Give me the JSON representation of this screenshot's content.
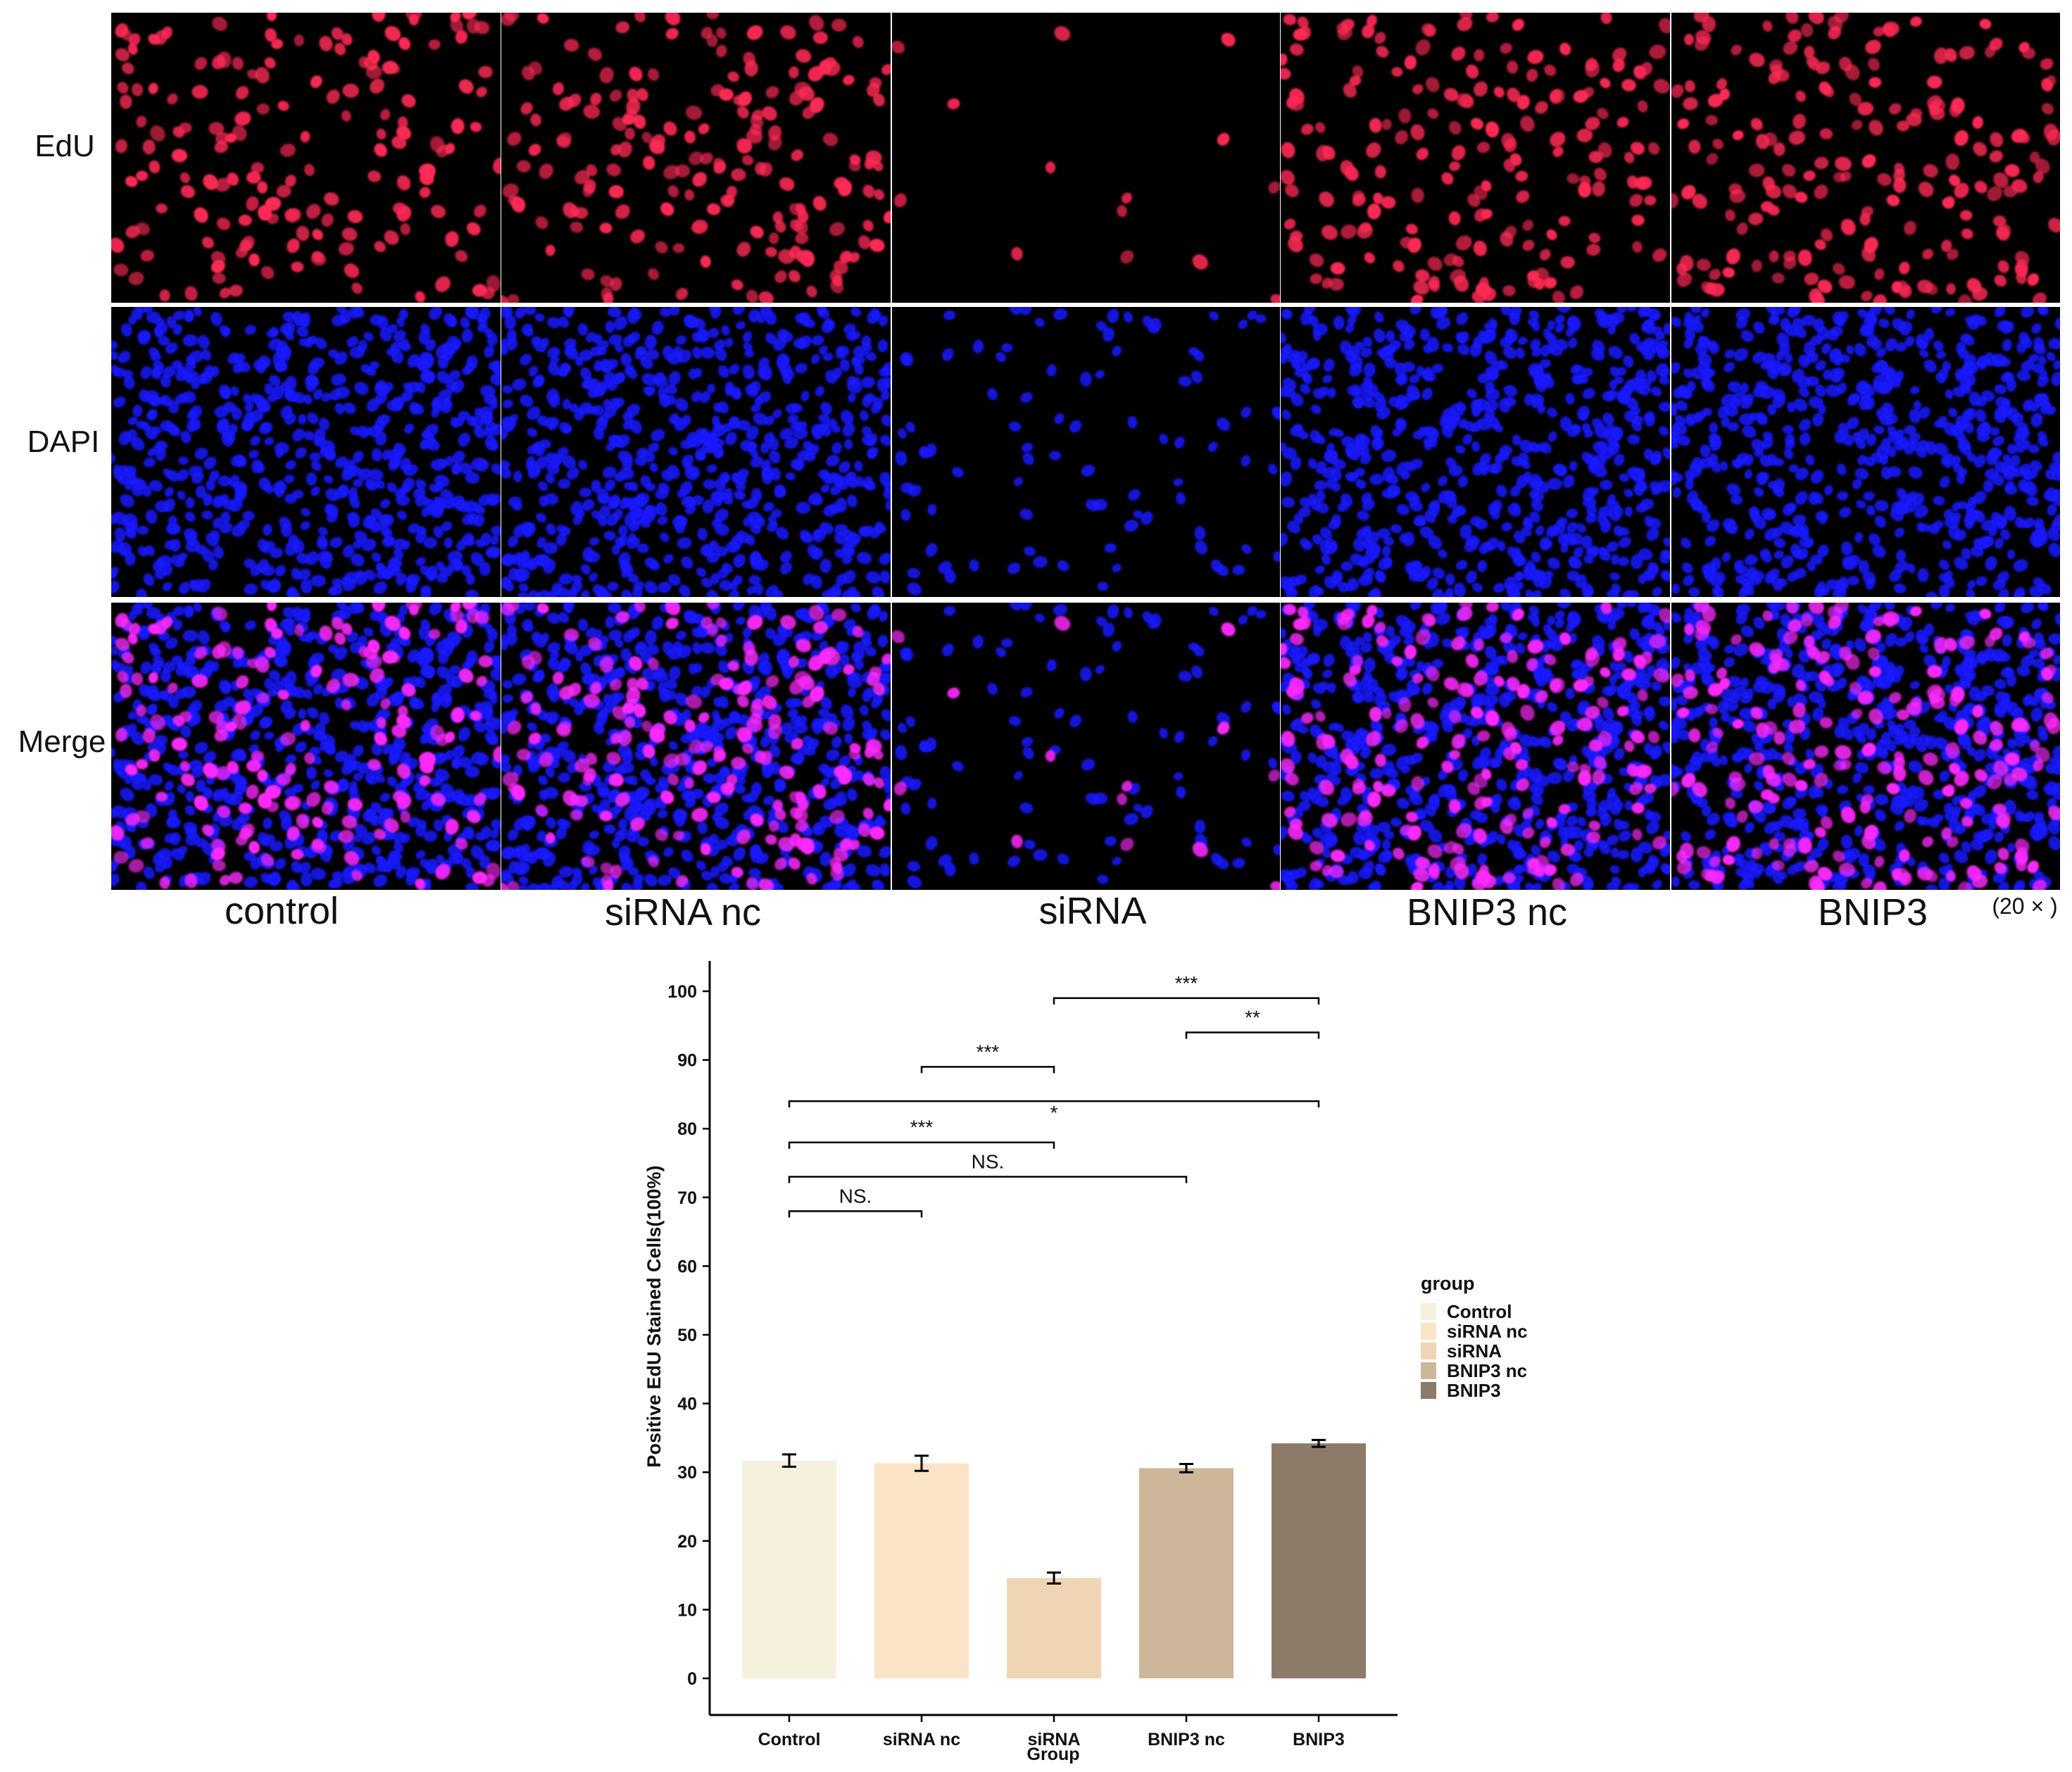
{
  "micrograph_panel": {
    "rows": [
      "EdU",
      "DAPI",
      "Merge"
    ],
    "columns": [
      "control",
      "siRNA nc",
      "siRNA",
      "BNIP3 nc",
      "BNIP3"
    ],
    "magnification": "(20 × )",
    "colors": {
      "edu": "#ff2a55",
      "dapi": "#1a1aff",
      "merge": "#ff2aff",
      "background": "#000000"
    },
    "relative_density": [
      1.0,
      1.1,
      0.08,
      1.1,
      1.15
    ]
  },
  "chart_data": {
    "type": "bar",
    "title": "",
    "categories": [
      "Control",
      "siRNA nc",
      "siRNA",
      "BNIP3 nc",
      "BNIP3"
    ],
    "values": [
      31.7,
      31.3,
      14.6,
      30.6,
      34.2
    ],
    "errors": [
      0.9,
      1.1,
      0.8,
      0.6,
      0.5
    ],
    "colors": [
      "#f5f1dd",
      "#fbe3c6",
      "#efd5b4",
      "#cdb79a",
      "#8c7b69"
    ],
    "xlabel": "Group",
    "ylabel": "Positive EdU Stained Cells(100%)",
    "ylim": [
      0,
      100
    ],
    "yticks": [
      0,
      10,
      20,
      30,
      40,
      50,
      60,
      70,
      80,
      90,
      100
    ],
    "grid": false,
    "legend": {
      "title": "group",
      "position": "right"
    },
    "comparisons": [
      {
        "from": 2,
        "to": 4,
        "y": 99,
        "label": "***"
      },
      {
        "from": 3,
        "to": 4,
        "y": 94,
        "label": "**"
      },
      {
        "from": 1,
        "to": 2,
        "y": 89,
        "label": "***"
      },
      {
        "from": 0,
        "to": 4,
        "y": 84,
        "label": "*"
      },
      {
        "from": 0,
        "to": 2,
        "y": 78,
        "label": "***"
      },
      {
        "from": 0,
        "to": 3,
        "y": 73,
        "label": "NS."
      },
      {
        "from": 0,
        "to": 1,
        "y": 68,
        "label": "NS."
      }
    ]
  }
}
